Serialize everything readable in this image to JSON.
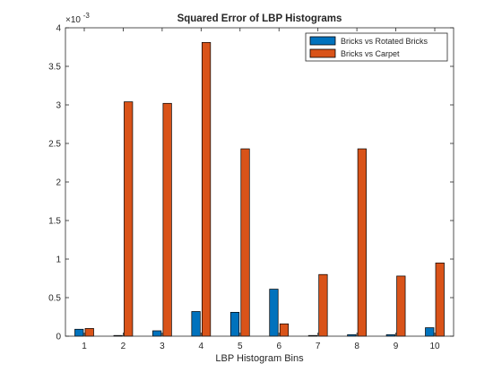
{
  "chart_data": {
    "type": "bar",
    "title": "Squared Error of LBP Histograms",
    "xlabel": "LBP Histogram Bins",
    "ylabel": "",
    "exponent_label": "×10",
    "exponent_power": "-3",
    "categories": [
      "1",
      "2",
      "3",
      "4",
      "5",
      "6",
      "7",
      "8",
      "9",
      "10"
    ],
    "ylim": [
      0,
      4
    ],
    "yticks": [
      "0",
      "0.5",
      "1",
      "1.5",
      "2",
      "2.5",
      "3",
      "3.5",
      "4"
    ],
    "grid": false,
    "legend_position": "top-right",
    "series": [
      {
        "name": "Bricks vs Rotated Bricks",
        "color": "#0072BD",
        "values": [
          0.09,
          0.0,
          0.07,
          0.32,
          0.31,
          0.61,
          0.0,
          0.02,
          0.02,
          0.11
        ]
      },
      {
        "name": "Bricks vs Carpet",
        "color": "#D95319",
        "values": [
          0.1,
          3.04,
          3.02,
          3.81,
          2.43,
          0.16,
          0.8,
          2.43,
          0.78,
          0.95
        ]
      }
    ]
  }
}
